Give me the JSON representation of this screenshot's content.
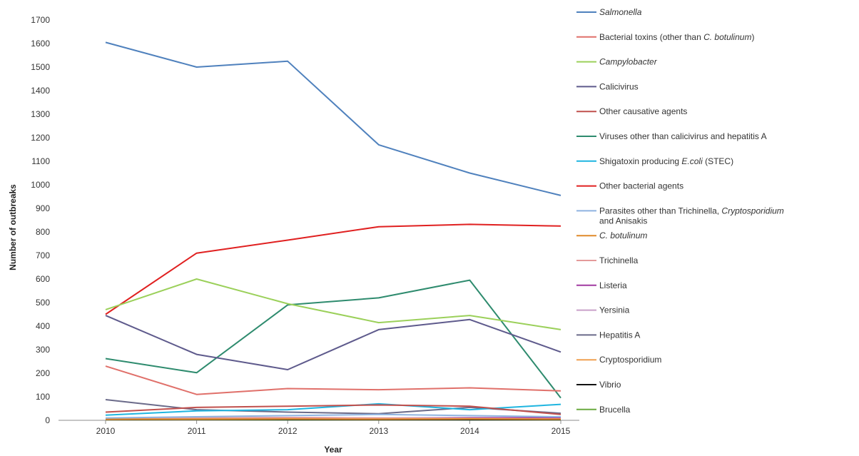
{
  "chart_data": {
    "type": "line",
    "title": "",
    "xlabel": "Year",
    "ylabel": "Number of outbreaks",
    "x": [
      "2010",
      "2011",
      "2012",
      "2013",
      "2014",
      "2015"
    ],
    "ylim": [
      0,
      1700
    ],
    "ytick_step": 100,
    "grid": false,
    "legend_placement": "right",
    "series": [
      {
        "name": "Salmonella",
        "color": "#4f81bd",
        "values": [
          1605,
          1500,
          1525,
          1170,
          1050,
          955
        ]
      },
      {
        "name": "Bacterial toxins (other than C. botulinum)",
        "color": "#e0706a",
        "values": [
          230,
          110,
          135,
          130,
          138,
          125
        ]
      },
      {
        "name": "Campylobacter",
        "color": "#9bd05a",
        "values": [
          470,
          600,
          495,
          415,
          445,
          385
        ]
      },
      {
        "name": "Calicivirus",
        "color": "#5e5a8c",
        "values": [
          445,
          280,
          215,
          385,
          428,
          290
        ]
      },
      {
        "name": "Other causative agents",
        "color": "#c0504d",
        "values": [
          35,
          55,
          60,
          65,
          60,
          25
        ]
      },
      {
        "name": "Viruses other than calicivirus and hepatitis A",
        "color": "#2e8b6e",
        "values": [
          262,
          202,
          490,
          520,
          595,
          95
        ]
      },
      {
        "name": "Shigatoxin producing E.coli (STEC)",
        "color": "#1fb5e0",
        "values": [
          22,
          40,
          45,
          70,
          45,
          68
        ]
      },
      {
        "name": "Other bacterial agents",
        "color": "#e02020",
        "values": [
          450,
          710,
          765,
          822,
          832,
          825
        ]
      },
      {
        "name": "Parasites other than Trichinella, Cryptosporidium and Anisakis",
        "color": "#8fb3e0",
        "values": [
          10,
          15,
          20,
          25,
          20,
          15
        ]
      },
      {
        "name": "C. botulinum",
        "color": "#e08a2a",
        "values": [
          5,
          5,
          6,
          5,
          6,
          5
        ]
      },
      {
        "name": "Trichinella",
        "color": "#e49a9a",
        "values": [
          8,
          10,
          12,
          10,
          8,
          6
        ]
      },
      {
        "name": "Listeria",
        "color": "#a13aa1",
        "values": [
          5,
          8,
          10,
          8,
          10,
          12
        ]
      },
      {
        "name": "Yersinia",
        "color": "#c9a0c9",
        "values": [
          8,
          10,
          12,
          10,
          12,
          10
        ]
      },
      {
        "name": "Hepatitis A",
        "color": "#6b6b8a",
        "values": [
          88,
          45,
          35,
          28,
          55,
          30
        ]
      },
      {
        "name": "Cryptosporidium",
        "color": "#f0a050",
        "values": [
          4,
          6,
          8,
          6,
          10,
          8
        ]
      },
      {
        "name": "Vibrio",
        "color": "#111111",
        "values": [
          3,
          4,
          4,
          3,
          3,
          3
        ]
      },
      {
        "name": "Brucella",
        "color": "#6aaa40",
        "values": [
          2,
          3,
          2,
          2,
          2,
          2
        ]
      }
    ],
    "legend": {
      "entries": [
        {
          "segments": [
            {
              "text": "Salmonella",
              "italic": true
            }
          ]
        },
        {
          "segments": [
            {
              "text": "Bacterial toxins (other than ",
              "italic": false
            },
            {
              "text": "C. botulinum",
              "italic": true
            },
            {
              "text": ")",
              "italic": false
            }
          ]
        },
        {
          "segments": [
            {
              "text": "Campylobacter",
              "italic": true
            }
          ]
        },
        {
          "segments": [
            {
              "text": "Calicivirus",
              "italic": false
            }
          ]
        },
        {
          "segments": [
            {
              "text": "Other causative agents",
              "italic": false
            }
          ]
        },
        {
          "segments": [
            {
              "text": "Viruses other than calicivirus and hepatitis A",
              "italic": false
            }
          ]
        },
        {
          "segments": [
            {
              "text": "Shigatoxin producing ",
              "italic": false
            },
            {
              "text": "E.coli",
              "italic": true
            },
            {
              "text": " (STEC)",
              "italic": false
            }
          ]
        },
        {
          "segments": [
            {
              "text": "Other bacterial agents",
              "italic": false
            }
          ]
        },
        {
          "segments": [
            {
              "text": "Parasites other than Trichinella, ",
              "italic": false
            },
            {
              "text": "Cryptosporidium",
              "italic": true
            }
          ],
          "second_line": "and Anisakis"
        },
        {
          "segments": [
            {
              "text": "C. botulinum",
              "italic": true
            }
          ]
        },
        {
          "segments": [
            {
              "text": "Trichinella",
              "italic": false
            }
          ]
        },
        {
          "segments": [
            {
              "text": "Listeria",
              "italic": false
            }
          ]
        },
        {
          "segments": [
            {
              "text": "Yersinia",
              "italic": false
            }
          ]
        },
        {
          "segments": [
            {
              "text": "Hepatitis A",
              "italic": false
            }
          ]
        },
        {
          "segments": [
            {
              "text": "Cryptosporidium",
              "italic": false
            }
          ]
        },
        {
          "segments": [
            {
              "text": "Vibrio",
              "italic": false
            }
          ]
        },
        {
          "segments": [
            {
              "text": "Brucella",
              "italic": false
            }
          ]
        }
      ]
    }
  }
}
